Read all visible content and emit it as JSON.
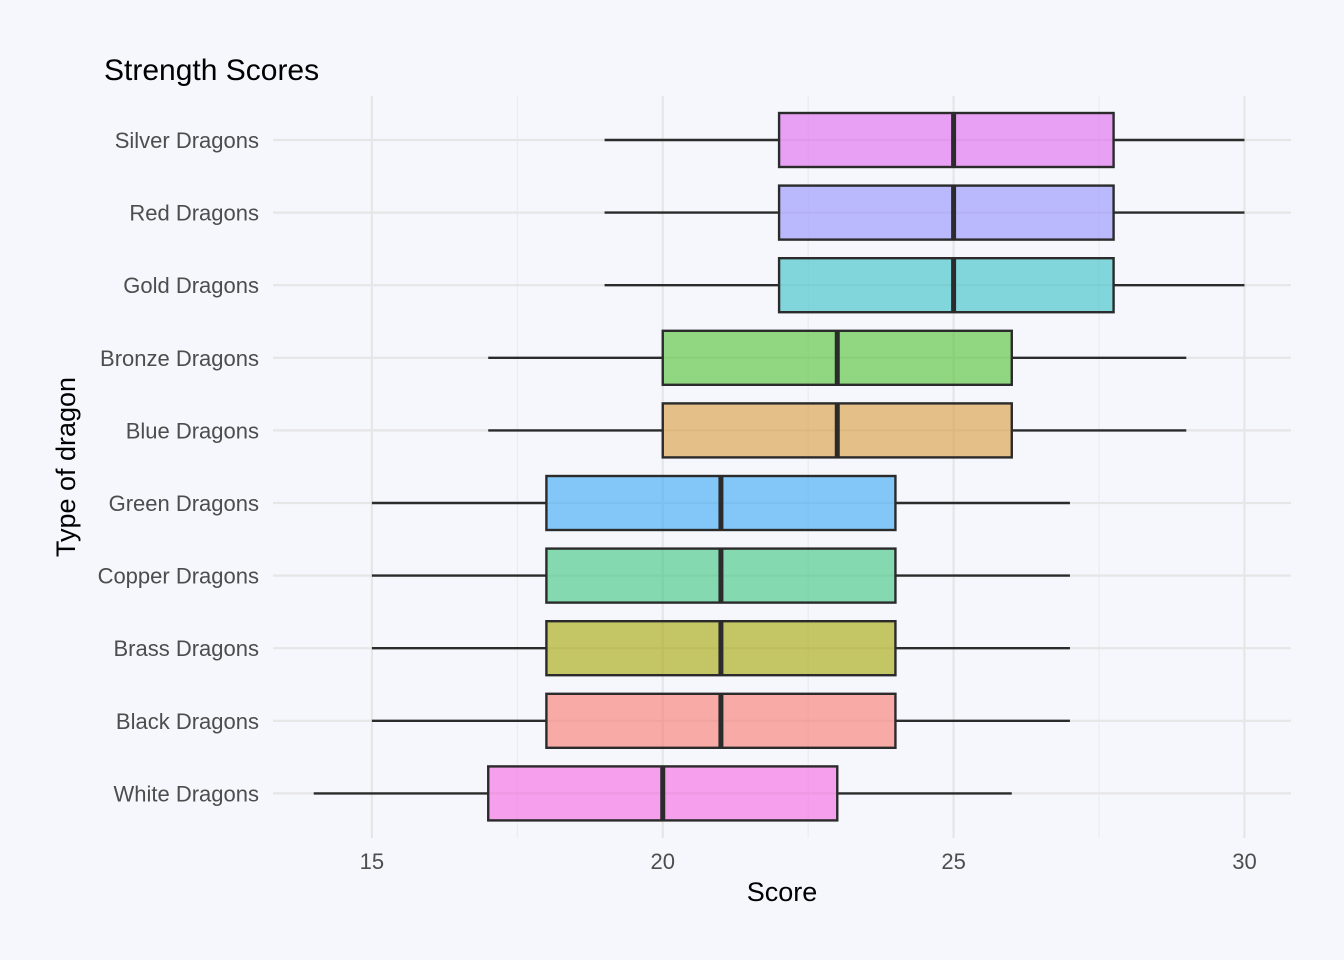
{
  "chart_data": {
    "type": "boxplot",
    "title": "Strength Scores",
    "xlabel": "Score",
    "ylabel": "Type of dragon",
    "xlim": [
      13.3,
      30.8
    ],
    "xticks": [
      15,
      20,
      25,
      30
    ],
    "grid": true,
    "legend": "none",
    "categories": [
      {
        "name": "White Dragons",
        "min": 14,
        "q1": 17,
        "median": 20,
        "q3": 23,
        "max": 26,
        "color": "#f564e3"
      },
      {
        "name": "Black Dragons",
        "min": 15,
        "q1": 18,
        "median": 21,
        "q3": 24,
        "max": 27,
        "color": "#f8766d"
      },
      {
        "name": "Brass Dragons",
        "min": 15,
        "q1": 18,
        "median": 21,
        "q3": 24,
        "max": 27,
        "color": "#a3a500"
      },
      {
        "name": "Copper Dragons",
        "min": 15,
        "q1": 18,
        "median": 21,
        "q3": 24,
        "max": 27,
        "color": "#39c47f"
      },
      {
        "name": "Green Dragons",
        "min": 15,
        "q1": 18,
        "median": 21,
        "q3": 24,
        "max": 27,
        "color": "#35a7f5"
      },
      {
        "name": "Blue Dragons",
        "min": 17,
        "q1": 20,
        "median": 23,
        "q3": 26,
        "max": 29,
        "color": "#d89a3a"
      },
      {
        "name": "Bronze Dragons",
        "min": 17,
        "q1": 20,
        "median": 23,
        "q3": 26,
        "max": 29,
        "color": "#4fbf2f"
      },
      {
        "name": "Gold Dragons",
        "min": 19,
        "q1": 22,
        "median": 25,
        "q3": 27.75,
        "max": 30,
        "color": "#33bfc7"
      },
      {
        "name": "Red Dragons",
        "min": 19,
        "q1": 22,
        "median": 25,
        "q3": 27.75,
        "max": 30,
        "color": "#9590ff"
      },
      {
        "name": "Silver Dragons",
        "min": 19,
        "q1": 22,
        "median": 25,
        "q3": 27.75,
        "max": 30,
        "color": "#e066f0"
      }
    ]
  }
}
